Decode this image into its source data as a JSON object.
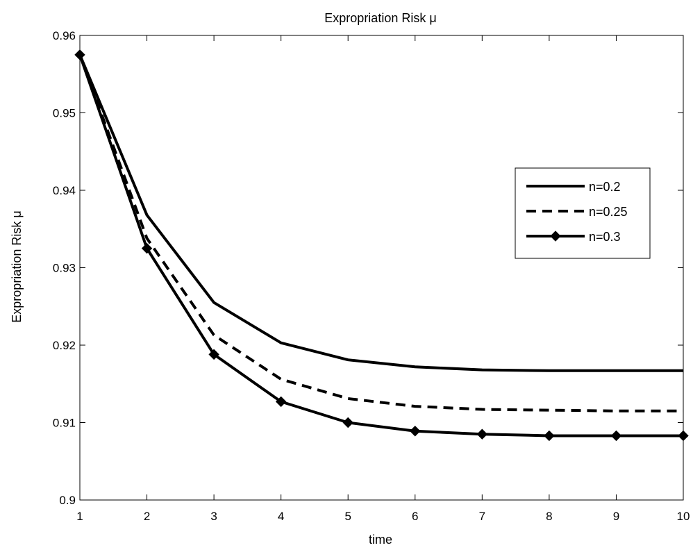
{
  "chart_data": {
    "type": "line",
    "title": "Expropriation Risk μ",
    "xlabel": "time",
    "ylabel": "Expropriation Risk μ",
    "xlim": [
      1,
      10
    ],
    "ylim": [
      0.9,
      0.96
    ],
    "xticks": [
      "1",
      "2",
      "3",
      "4",
      "5",
      "6",
      "7",
      "8",
      "9",
      "10"
    ],
    "yticks": [
      "0.9",
      "0.91",
      "0.92",
      "0.93",
      "0.94",
      "0.95",
      "0.96"
    ],
    "grid": false,
    "legend_position": "right",
    "x": [
      1,
      2,
      3,
      4,
      5,
      6,
      7,
      8,
      9,
      10
    ],
    "series": [
      {
        "name": "n=0.2",
        "style": "solid",
        "marker": "none",
        "values": [
          0.9575,
          0.9368,
          0.9255,
          0.9203,
          0.9181,
          0.9172,
          0.9168,
          0.9167,
          0.9167,
          0.9167
        ]
      },
      {
        "name": "n=0.25",
        "style": "dashed",
        "marker": "none",
        "values": [
          0.9575,
          0.9338,
          0.9213,
          0.9156,
          0.9131,
          0.9121,
          0.9117,
          0.9116,
          0.9115,
          0.9115
        ]
      },
      {
        "name": "n=0.3",
        "style": "solid",
        "marker": "diamond",
        "values": [
          0.9575,
          0.9325,
          0.9188,
          0.9127,
          0.91,
          0.9089,
          0.9085,
          0.9083,
          0.9083,
          0.9083
        ]
      }
    ],
    "colors": {
      "line": "#000000",
      "axis": "#000000",
      "background": "#ffffff"
    }
  }
}
